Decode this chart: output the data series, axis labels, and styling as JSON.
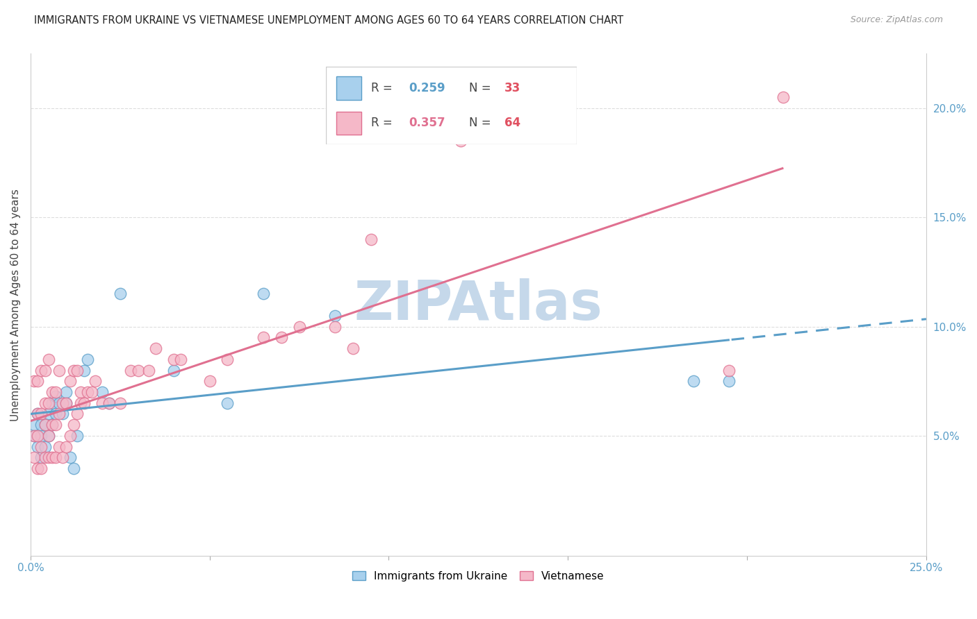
{
  "title": "IMMIGRANTS FROM UKRAINE VS VIETNAMESE UNEMPLOYMENT AMONG AGES 60 TO 64 YEARS CORRELATION CHART",
  "source": "Source: ZipAtlas.com",
  "ylabel": "Unemployment Among Ages 60 to 64 years",
  "xlim": [
    0.0,
    0.25
  ],
  "ylim": [
    -0.005,
    0.225
  ],
  "right_yticks": [
    0.05,
    0.1,
    0.15,
    0.2
  ],
  "right_ytick_labels": [
    "5.0%",
    "10.0%",
    "15.0%",
    "20.0%"
  ],
  "xticks": [
    0.0,
    0.05,
    0.1,
    0.15,
    0.2,
    0.25
  ],
  "xtick_labels": [
    "0.0%",
    "",
    "",
    "",
    "",
    "25.0%"
  ],
  "ukraine_color": "#a8d0ed",
  "ukraine_edge": "#5a9ec8",
  "viet_color": "#f5b8c8",
  "viet_edge": "#e07090",
  "ukraine_R": 0.259,
  "ukraine_N": 33,
  "viet_R": 0.357,
  "viet_N": 64,
  "ukraine_line_color": "#5a9ec8",
  "viet_line_color": "#e07090",
  "ukraine_x": [
    0.001,
    0.001,
    0.002,
    0.002,
    0.003,
    0.003,
    0.003,
    0.004,
    0.004,
    0.005,
    0.005,
    0.006,
    0.006,
    0.007,
    0.007,
    0.008,
    0.009,
    0.01,
    0.01,
    0.011,
    0.012,
    0.013,
    0.015,
    0.016,
    0.02,
    0.022,
    0.025,
    0.04,
    0.055,
    0.065,
    0.085,
    0.185,
    0.195
  ],
  "ukraine_y": [
    0.05,
    0.055,
    0.045,
    0.06,
    0.04,
    0.05,
    0.055,
    0.045,
    0.055,
    0.05,
    0.06,
    0.055,
    0.065,
    0.06,
    0.068,
    0.065,
    0.06,
    0.065,
    0.07,
    0.04,
    0.035,
    0.05,
    0.08,
    0.085,
    0.07,
    0.065,
    0.115,
    0.08,
    0.065,
    0.115,
    0.105,
    0.075,
    0.075
  ],
  "viet_x": [
    0.001,
    0.001,
    0.001,
    0.002,
    0.002,
    0.002,
    0.002,
    0.003,
    0.003,
    0.003,
    0.003,
    0.004,
    0.004,
    0.004,
    0.004,
    0.005,
    0.005,
    0.005,
    0.005,
    0.006,
    0.006,
    0.006,
    0.007,
    0.007,
    0.007,
    0.008,
    0.008,
    0.008,
    0.009,
    0.009,
    0.01,
    0.01,
    0.011,
    0.011,
    0.012,
    0.012,
    0.013,
    0.013,
    0.014,
    0.014,
    0.015,
    0.016,
    0.017,
    0.018,
    0.02,
    0.022,
    0.025,
    0.028,
    0.03,
    0.033,
    0.035,
    0.04,
    0.042,
    0.05,
    0.055,
    0.065,
    0.07,
    0.075,
    0.085,
    0.09,
    0.095,
    0.12,
    0.195,
    0.21
  ],
  "viet_y": [
    0.04,
    0.05,
    0.075,
    0.035,
    0.05,
    0.06,
    0.075,
    0.035,
    0.045,
    0.06,
    0.08,
    0.04,
    0.055,
    0.065,
    0.08,
    0.04,
    0.05,
    0.065,
    0.085,
    0.04,
    0.055,
    0.07,
    0.04,
    0.055,
    0.07,
    0.045,
    0.06,
    0.08,
    0.04,
    0.065,
    0.045,
    0.065,
    0.05,
    0.075,
    0.055,
    0.08,
    0.06,
    0.08,
    0.07,
    0.065,
    0.065,
    0.07,
    0.07,
    0.075,
    0.065,
    0.065,
    0.065,
    0.08,
    0.08,
    0.08,
    0.09,
    0.085,
    0.085,
    0.075,
    0.085,
    0.095,
    0.095,
    0.1,
    0.1,
    0.09,
    0.14,
    0.185,
    0.08,
    0.205
  ],
  "watermark": "ZIPAtlas",
  "watermark_color": "#c5d8ea",
  "background_color": "#ffffff",
  "grid_color": "#dddddd",
  "legend_text_color": "#444444",
  "r_color_uk": "#5a9ec8",
  "r_color_viet": "#e07090",
  "n_color": "#e05060"
}
